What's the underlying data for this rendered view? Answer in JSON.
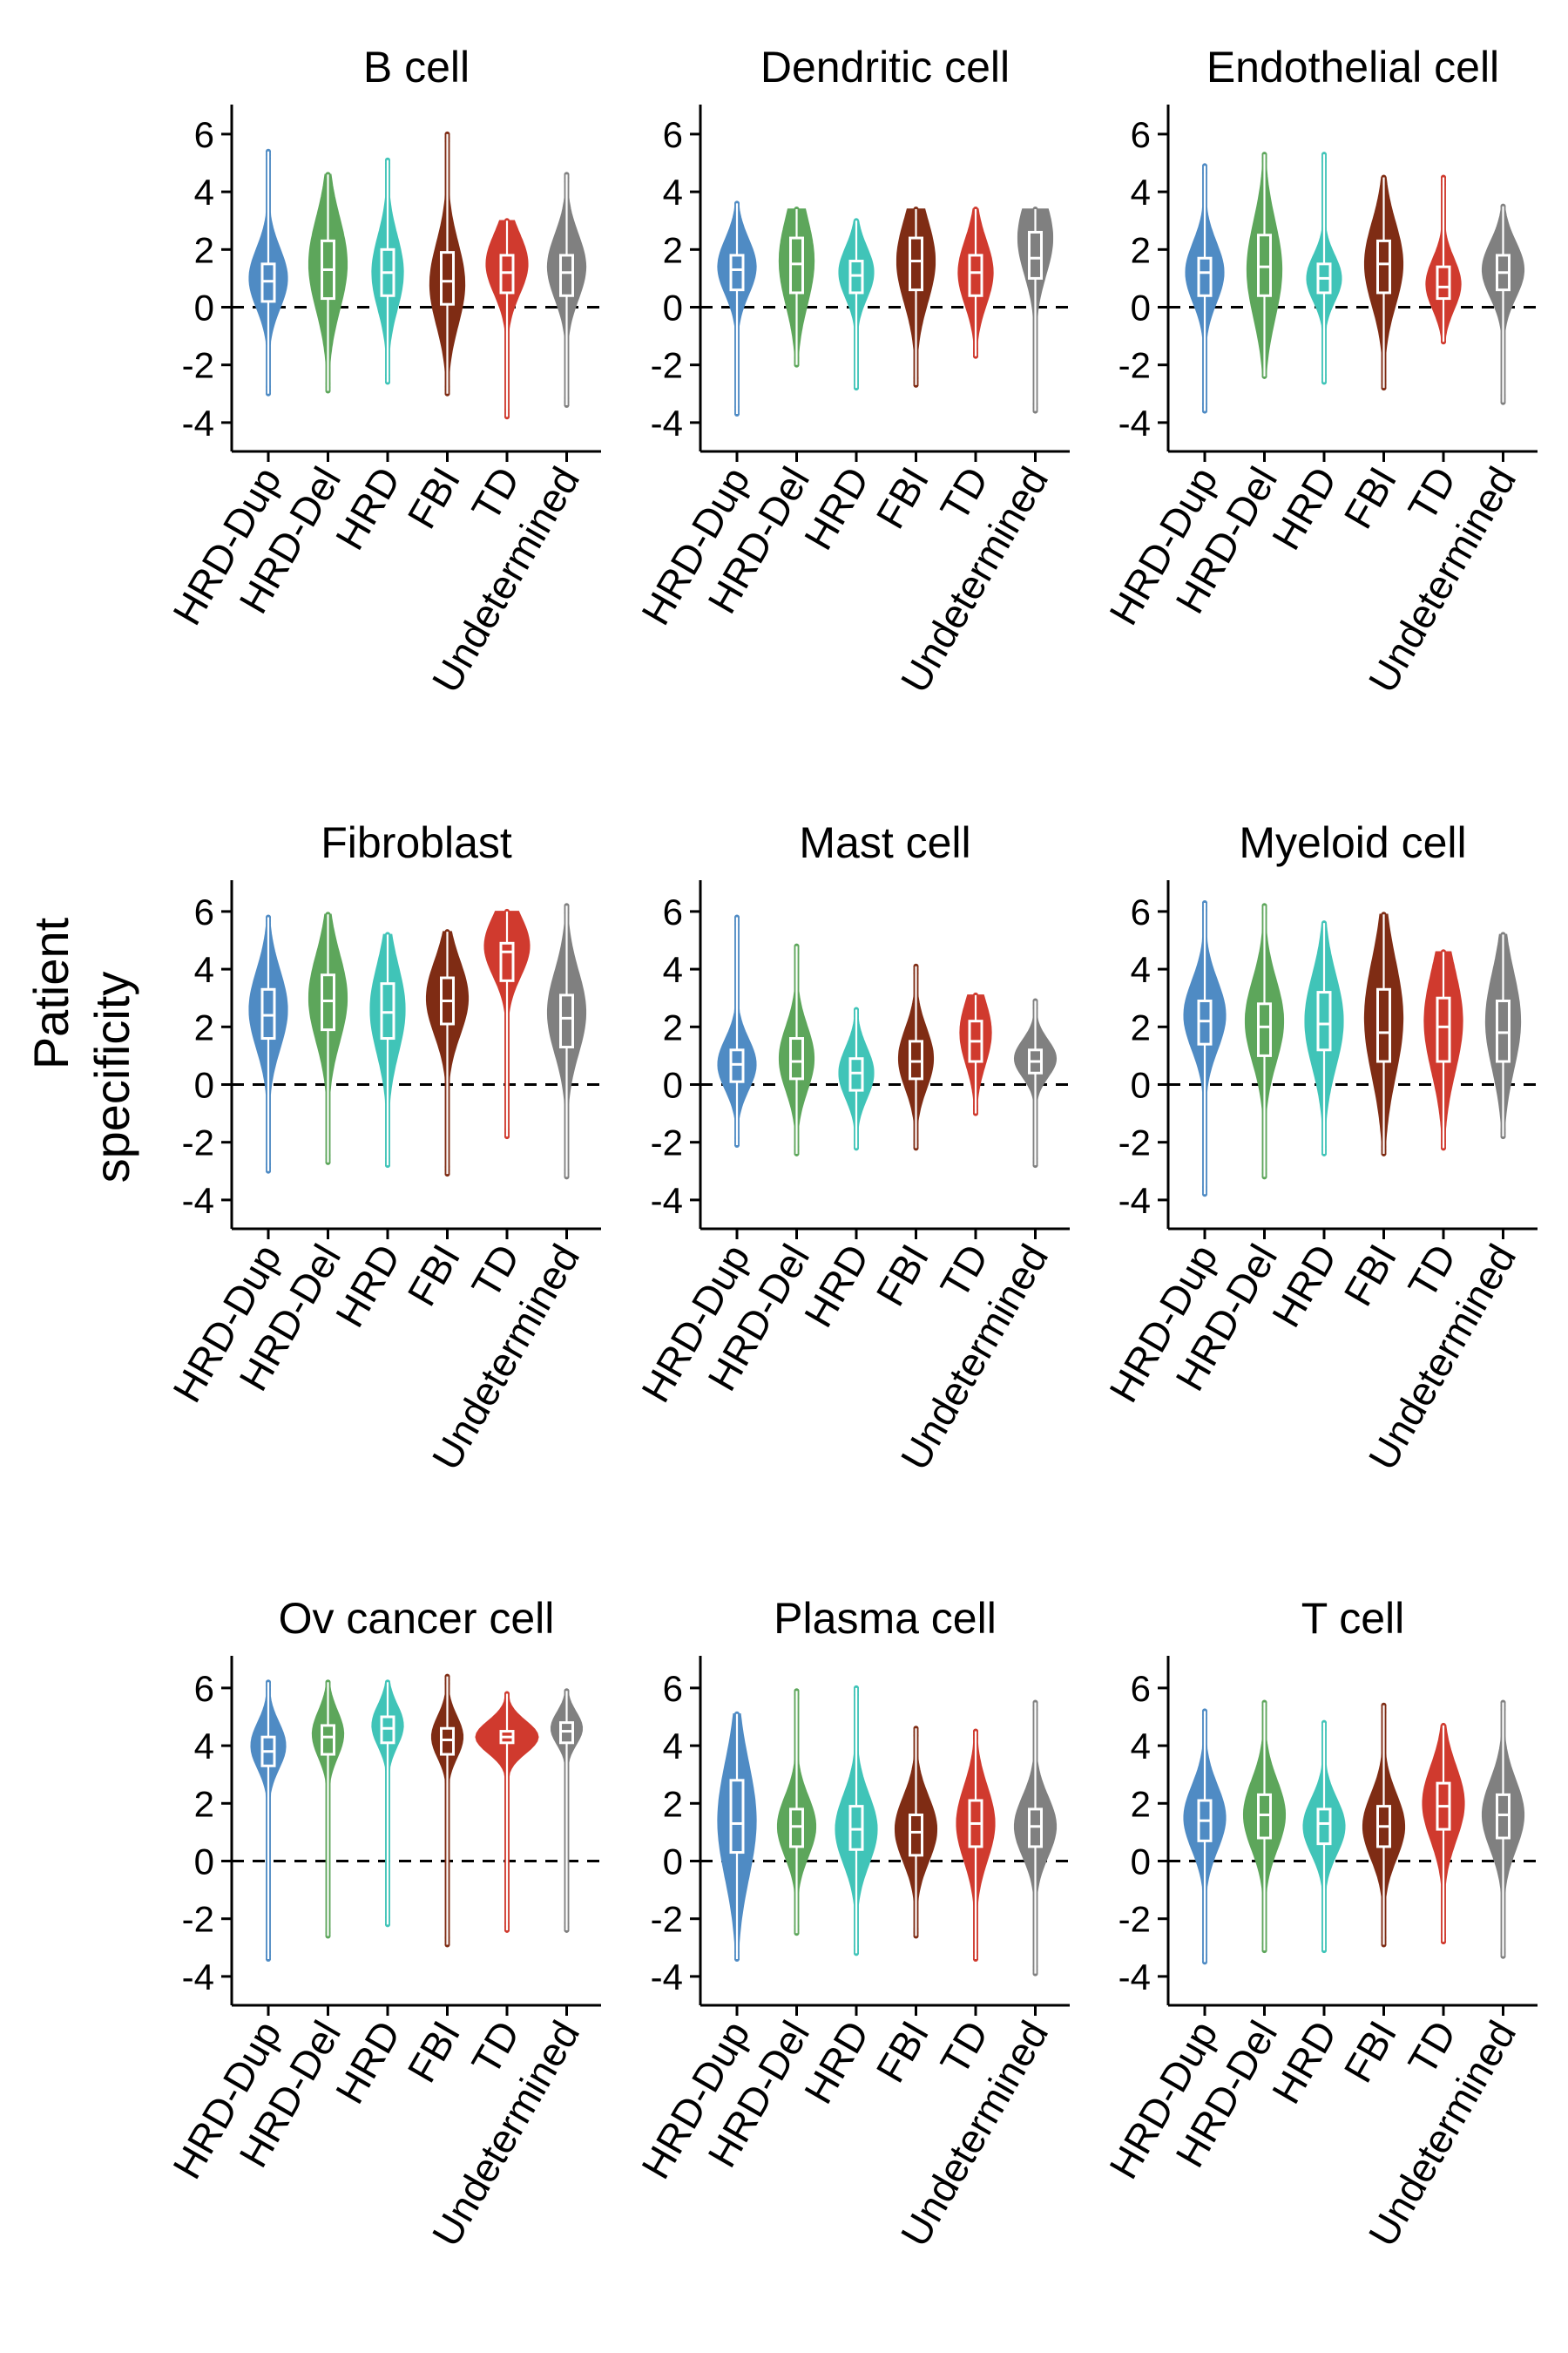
{
  "y_axis_label": [
    "Patient",
    "specificity"
  ],
  "colors": {
    "HRD-Dup": "#4f8bc4",
    "HRD-Del": "#5da65b",
    "HRD": "#40c4b8",
    "FBI": "#7f2c14",
    "TD": "#d03a2e",
    "Undetermined": "#808080"
  },
  "chart_data": {
    "type": "violin",
    "categories": [
      "HRD-Dup",
      "HRD-Del",
      "HRD",
      "FBI",
      "TD",
      "Undetermined"
    ],
    "yticks": [
      6,
      4,
      2,
      0,
      -2,
      -4
    ],
    "ylim": [
      -5,
      7
    ],
    "reference_line": 0,
    "panels": [
      {
        "title": "B cell",
        "groups": [
          {
            "min": -3.0,
            "q1": 0.2,
            "median": 0.9,
            "q3": 1.5,
            "max": 5.4,
            "mode": 1.0,
            "width": 0.55
          },
          {
            "min": -2.9,
            "q1": 0.3,
            "median": 1.3,
            "q3": 2.3,
            "max": 4.6,
            "mode": 1.5,
            "width": 0.55
          },
          {
            "min": -2.6,
            "q1": 0.4,
            "median": 1.2,
            "q3": 2.0,
            "max": 5.1,
            "mode": 1.2,
            "width": 0.45
          },
          {
            "min": -3.0,
            "q1": 0.1,
            "median": 0.9,
            "q3": 1.9,
            "max": 6.0,
            "mode": 0.8,
            "width": 0.5
          },
          {
            "min": -3.8,
            "q1": 0.5,
            "median": 1.2,
            "q3": 1.8,
            "max": 3.0,
            "mode": 1.5,
            "width": 0.6
          },
          {
            "min": -3.4,
            "q1": 0.4,
            "median": 1.2,
            "q3": 1.8,
            "max": 4.6,
            "mode": 1.4,
            "width": 0.55
          }
        ]
      },
      {
        "title": "Dendritic cell",
        "groups": [
          {
            "min": -3.7,
            "q1": 0.6,
            "median": 1.3,
            "q3": 1.8,
            "max": 3.6,
            "mode": 1.4,
            "width": 0.55
          },
          {
            "min": -2.0,
            "q1": 0.5,
            "median": 1.5,
            "q3": 2.4,
            "max": 3.4,
            "mode": 1.6,
            "width": 0.5
          },
          {
            "min": -2.8,
            "q1": 0.5,
            "median": 1.1,
            "q3": 1.6,
            "max": 3.0,
            "mode": 1.2,
            "width": 0.5
          },
          {
            "min": -2.7,
            "q1": 0.6,
            "median": 1.6,
            "q3": 2.4,
            "max": 3.4,
            "mode": 1.6,
            "width": 0.55
          },
          {
            "min": -1.7,
            "q1": 0.4,
            "median": 1.2,
            "q3": 1.8,
            "max": 3.4,
            "mode": 1.2,
            "width": 0.5
          },
          {
            "min": -3.6,
            "q1": 1.0,
            "median": 1.7,
            "q3": 2.6,
            "max": 3.4,
            "mode": 2.4,
            "width": 0.5
          }
        ]
      },
      {
        "title": "Endothelial cell",
        "groups": [
          {
            "min": -3.6,
            "q1": 0.4,
            "median": 1.2,
            "q3": 1.7,
            "max": 4.9,
            "mode": 1.2,
            "width": 0.55
          },
          {
            "min": -2.4,
            "q1": 0.4,
            "median": 1.4,
            "q3": 2.5,
            "max": 5.3,
            "mode": 1.3,
            "width": 0.5
          },
          {
            "min": -2.6,
            "q1": 0.5,
            "median": 1.0,
            "q3": 1.5,
            "max": 5.3,
            "mode": 1.0,
            "width": 0.5
          },
          {
            "min": -2.8,
            "q1": 0.5,
            "median": 1.5,
            "q3": 2.3,
            "max": 4.5,
            "mode": 1.5,
            "width": 0.55
          },
          {
            "min": -1.2,
            "q1": 0.3,
            "median": 0.7,
            "q3": 1.4,
            "max": 4.5,
            "mode": 0.8,
            "width": 0.5
          },
          {
            "min": -3.3,
            "q1": 0.6,
            "median": 1.2,
            "q3": 1.8,
            "max": 3.5,
            "mode": 1.3,
            "width": 0.6
          }
        ]
      },
      {
        "title": "Fibroblast",
        "groups": [
          {
            "min": -3.0,
            "q1": 1.6,
            "median": 2.4,
            "q3": 3.3,
            "max": 5.8,
            "mode": 2.6,
            "width": 0.55
          },
          {
            "min": -2.7,
            "q1": 1.9,
            "median": 2.9,
            "q3": 3.8,
            "max": 5.9,
            "mode": 3.0,
            "width": 0.55
          },
          {
            "min": -2.8,
            "q1": 1.6,
            "median": 2.5,
            "q3": 3.5,
            "max": 5.2,
            "mode": 2.6,
            "width": 0.5
          },
          {
            "min": -3.1,
            "q1": 2.1,
            "median": 2.9,
            "q3": 3.7,
            "max": 5.3,
            "mode": 3.0,
            "width": 0.6
          },
          {
            "min": -1.8,
            "q1": 3.6,
            "median": 4.6,
            "q3": 4.9,
            "max": 6.0,
            "mode": 4.8,
            "width": 0.65
          },
          {
            "min": -3.2,
            "q1": 1.3,
            "median": 2.3,
            "q3": 3.1,
            "max": 6.2,
            "mode": 2.5,
            "width": 0.55
          }
        ]
      },
      {
        "title": "Mast cell",
        "groups": [
          {
            "min": -2.1,
            "q1": 0.1,
            "median": 0.7,
            "q3": 1.2,
            "max": 5.8,
            "mode": 0.7,
            "width": 0.55
          },
          {
            "min": -2.4,
            "q1": 0.2,
            "median": 0.8,
            "q3": 1.6,
            "max": 4.8,
            "mode": 0.9,
            "width": 0.5
          },
          {
            "min": -2.2,
            "q1": -0.2,
            "median": 0.4,
            "q3": 0.9,
            "max": 2.6,
            "mode": 0.4,
            "width": 0.5
          },
          {
            "min": -2.2,
            "q1": 0.2,
            "median": 0.8,
            "q3": 1.5,
            "max": 4.1,
            "mode": 0.9,
            "width": 0.5
          },
          {
            "min": -1.0,
            "q1": 0.8,
            "median": 1.5,
            "q3": 2.2,
            "max": 3.1,
            "mode": 1.8,
            "width": 0.45
          },
          {
            "min": -2.8,
            "q1": 0.4,
            "median": 0.8,
            "q3": 1.2,
            "max": 2.9,
            "mode": 0.9,
            "width": 0.6
          }
        ]
      },
      {
        "title": "Myeloid cell",
        "groups": [
          {
            "min": -3.8,
            "q1": 1.4,
            "median": 2.2,
            "q3": 2.9,
            "max": 6.3,
            "mode": 2.4,
            "width": 0.6
          },
          {
            "min": -3.2,
            "q1": 1.0,
            "median": 2.0,
            "q3": 2.8,
            "max": 6.2,
            "mode": 2.2,
            "width": 0.55
          },
          {
            "min": -2.4,
            "q1": 1.2,
            "median": 2.1,
            "q3": 3.2,
            "max": 5.6,
            "mode": 2.2,
            "width": 0.55
          },
          {
            "min": -2.4,
            "q1": 0.8,
            "median": 1.8,
            "q3": 3.3,
            "max": 5.9,
            "mode": 2.3,
            "width": 0.55
          },
          {
            "min": -2.2,
            "q1": 0.8,
            "median": 2.0,
            "q3": 3.0,
            "max": 4.6,
            "mode": 2.2,
            "width": 0.55
          },
          {
            "min": -1.8,
            "q1": 0.8,
            "median": 1.8,
            "q3": 2.9,
            "max": 5.2,
            "mode": 2.2,
            "width": 0.5
          }
        ]
      },
      {
        "title": "Ov cancer cell",
        "groups": [
          {
            "min": -3.4,
            "q1": 3.3,
            "median": 3.8,
            "q3": 4.3,
            "max": 6.2,
            "mode": 4.0,
            "width": 0.5
          },
          {
            "min": -2.6,
            "q1": 3.7,
            "median": 4.3,
            "q3": 4.7,
            "max": 6.2,
            "mode": 4.4,
            "width": 0.45
          },
          {
            "min": -2.2,
            "q1": 4.1,
            "median": 4.6,
            "q3": 5.0,
            "max": 6.2,
            "mode": 4.7,
            "width": 0.45
          },
          {
            "min": -2.9,
            "q1": 3.7,
            "median": 4.2,
            "q3": 4.6,
            "max": 6.4,
            "mode": 4.3,
            "width": 0.45
          },
          {
            "min": -2.4,
            "q1": 4.1,
            "median": 4.3,
            "q3": 4.5,
            "max": 5.8,
            "mode": 4.3,
            "width": 0.9
          },
          {
            "min": -2.4,
            "q1": 4.1,
            "median": 4.5,
            "q3": 4.8,
            "max": 5.9,
            "mode": 4.6,
            "width": 0.45
          }
        ]
      },
      {
        "title": "Plasma cell",
        "groups": [
          {
            "min": -3.4,
            "q1": 0.3,
            "median": 1.3,
            "q3": 2.8,
            "max": 5.1,
            "mode": 1.4,
            "width": 0.55
          },
          {
            "min": -2.5,
            "q1": 0.5,
            "median": 1.2,
            "q3": 1.8,
            "max": 5.9,
            "mode": 1.2,
            "width": 0.55
          },
          {
            "min": -3.2,
            "q1": 0.4,
            "median": 1.1,
            "q3": 1.9,
            "max": 6.0,
            "mode": 1.1,
            "width": 0.6
          },
          {
            "min": -2.6,
            "q1": 0.2,
            "median": 1.0,
            "q3": 1.6,
            "max": 4.6,
            "mode": 1.1,
            "width": 0.6
          },
          {
            "min": -3.4,
            "q1": 0.5,
            "median": 1.3,
            "q3": 2.1,
            "max": 4.5,
            "mode": 1.3,
            "width": 0.55
          },
          {
            "min": -3.9,
            "q1": 0.5,
            "median": 1.2,
            "q3": 1.8,
            "max": 5.5,
            "mode": 1.2,
            "width": 0.6
          }
        ]
      },
      {
        "title": "T cell",
        "groups": [
          {
            "min": -3.5,
            "q1": 0.7,
            "median": 1.4,
            "q3": 2.1,
            "max": 5.2,
            "mode": 1.5,
            "width": 0.6
          },
          {
            "min": -3.1,
            "q1": 0.8,
            "median": 1.6,
            "q3": 2.3,
            "max": 5.5,
            "mode": 1.6,
            "width": 0.6
          },
          {
            "min": -3.1,
            "q1": 0.6,
            "median": 1.3,
            "q3": 1.8,
            "max": 4.8,
            "mode": 1.2,
            "width": 0.6
          },
          {
            "min": -2.9,
            "q1": 0.5,
            "median": 1.2,
            "q3": 1.9,
            "max": 5.4,
            "mode": 1.2,
            "width": 0.6
          },
          {
            "min": -2.8,
            "q1": 1.1,
            "median": 1.9,
            "q3": 2.7,
            "max": 4.7,
            "mode": 2.0,
            "width": 0.6
          },
          {
            "min": -3.3,
            "q1": 0.8,
            "median": 1.6,
            "q3": 2.3,
            "max": 5.5,
            "mode": 1.6,
            "width": 0.6
          }
        ]
      }
    ]
  }
}
